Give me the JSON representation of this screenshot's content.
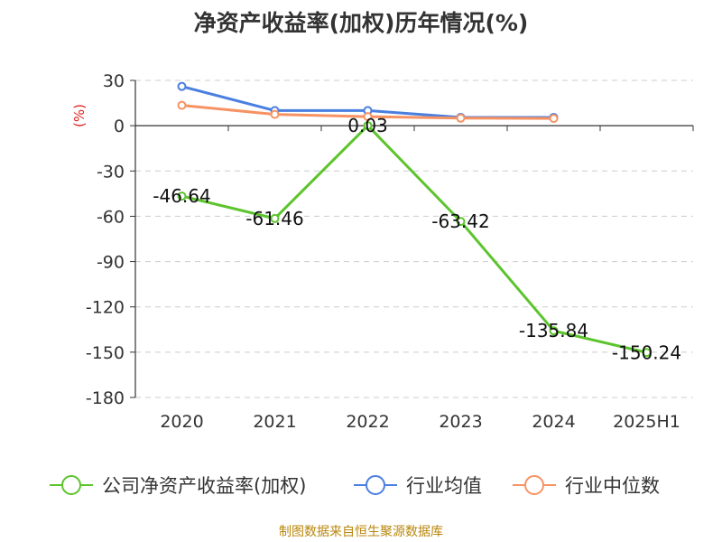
{
  "title": "净资产收益率(加权)历年情况(%)",
  "source_note": "制图数据来自恒生聚源数据库",
  "colors": {
    "company": "#5cc42c",
    "industry_avg": "#4a7fe0",
    "industry_median": "#f79263",
    "unit": "#e02020",
    "grid": "#cccccc",
    "axis": "#333333"
  },
  "chart_data": {
    "type": "line",
    "title": "净资产收益率(加权)历年情况(%)",
    "ylabel": "(%)",
    "xlabel": "",
    "categories": [
      "2020",
      "2021",
      "2022",
      "2023",
      "2024",
      "2025H1"
    ],
    "ylim": [
      -180,
      30
    ],
    "yticks": [
      30,
      0,
      -30,
      -60,
      -90,
      -120,
      -150,
      -180
    ],
    "grid": true,
    "legend_position": "bottom",
    "series": [
      {
        "name": "公司净资产收益率(加权)",
        "color_key": "company",
        "values": [
          -46.64,
          -61.46,
          0.03,
          -63.42,
          -135.84,
          -150.24
        ],
        "labels": [
          "-46.64",
          "-61.46",
          "0.03",
          "-63.42",
          "-135.84",
          "-150.24"
        ]
      },
      {
        "name": "行业均值",
        "color_key": "industry_avg",
        "values": [
          26,
          10,
          10,
          5.5,
          5.5,
          null
        ]
      },
      {
        "name": "行业中位数",
        "color_key": "industry_median",
        "values": [
          13.5,
          7.5,
          6,
          5,
          4.8,
          null
        ]
      }
    ]
  }
}
